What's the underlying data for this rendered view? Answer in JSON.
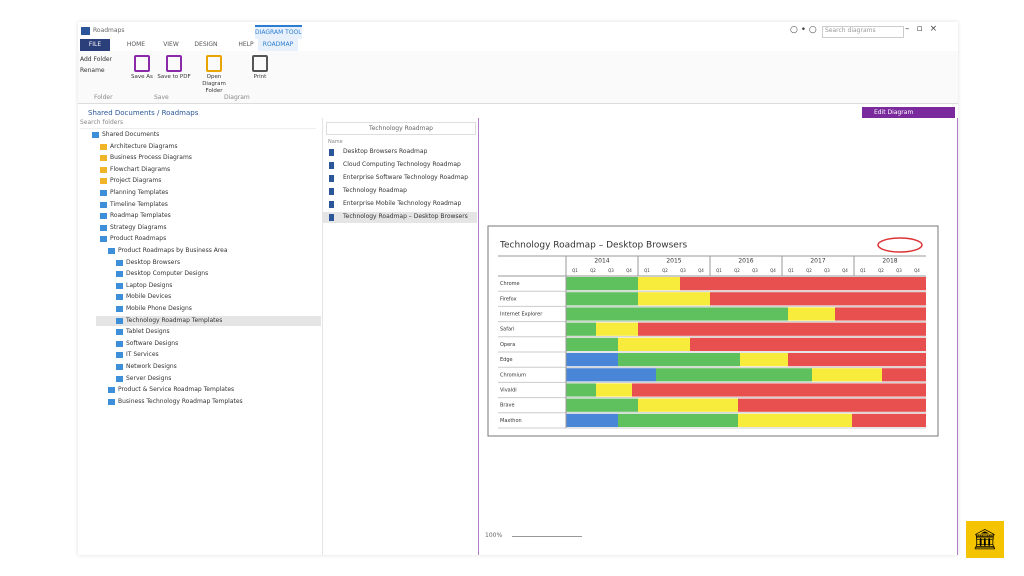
{
  "app": {
    "title": "Roadmaps",
    "context_tab": "DIAGRAM TOOLS",
    "search_placeholder": "Search diagrams"
  },
  "ribbon": {
    "tabs": [
      "FILE",
      "HOME",
      "VIEW",
      "DESIGN",
      "HELP",
      "ROADMAP"
    ],
    "small_buttons": [
      "Add Folder",
      "Rename"
    ],
    "buttons": [
      "Save As",
      "Save to PDF",
      "Open Diagram Folder",
      "Print"
    ],
    "groups": [
      "Folder",
      "Save",
      "Diagram"
    ]
  },
  "breadcrumb": "Shared Documents / Roadmaps",
  "tree_search": "Search folders",
  "tree": [
    "Shared Documents",
    "Architecture Diagrams",
    "Business Process Diagrams",
    "Flowchart Diagrams",
    "Project Diagrams",
    "Planning Templates",
    "Timeline Templates",
    "Roadmap Templates",
    "Strategy Diagrams",
    "Product Roadmaps",
    "Product Roadmaps by Business Area",
    "Desktop Browsers",
    "Desktop Computer Designs",
    "Laptop Designs",
    "Mobile Devices",
    "Mobile Phone Designs",
    "Technology Roadmap Templates",
    "Tablet Designs",
    "Software Designs",
    "IT Services",
    "Network Designs",
    "Server Designs",
    "Product & Service Roadmap Templates",
    "Business Technology Roadmap Templates"
  ],
  "list": {
    "header": "Technology Roadmap",
    "column": "Name",
    "items": [
      "Desktop Browsers Roadmap",
      "Cloud Computing Technology Roadmap",
      "Enterprise Software Technology Roadmap",
      "Technology Roadmap",
      "Enterprise Mobile Technology Roadmap",
      "Technology Roadmap – Desktop Browsers"
    ]
  },
  "preview": {
    "button": "Edit Diagram",
    "zoom": "100%",
    "roadmap": {
      "title": "Technology Roadmap – Desktop Browsers",
      "years": [
        "2014",
        "2015",
        "2016",
        "2017",
        "2018"
      ],
      "quarters": [
        "Q1",
        "Q2",
        "Q3",
        "Q4"
      ],
      "rows": [
        "Chrome",
        "Firefox",
        "Internet Explorer",
        "Safari",
        "Opera",
        "Edge",
        "Chromium",
        "Vivaldi",
        "Brave",
        "Maxthon"
      ]
    }
  }
}
